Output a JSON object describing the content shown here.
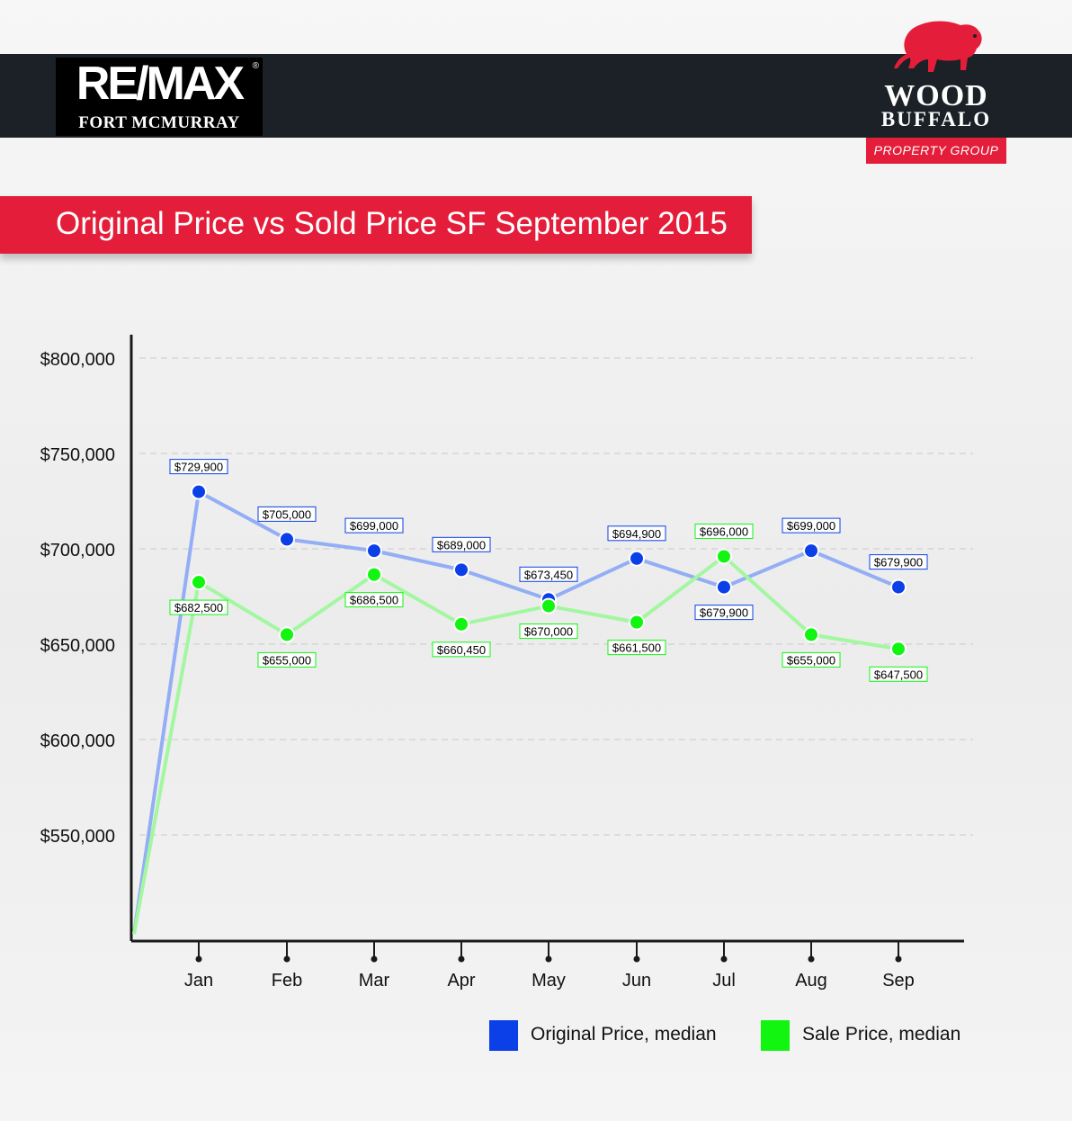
{
  "header": {
    "remax_wordmark": "RE/MAX",
    "remax_registered": "®",
    "remax_location": "FORT MCMURRAY",
    "wb_line1": "WOOD",
    "wb_line2": "BUFFALO",
    "wb_badge": "PROPERTY GROUP"
  },
  "colors": {
    "brand_red": "#e41e3a",
    "header_dark": "#1b2126",
    "original_line": "#93aef5",
    "original_marker": "#0b3fe8",
    "sale_line": "#a3f7a0",
    "sale_marker": "#11f511"
  },
  "chart_data": {
    "type": "line",
    "title": "Original Price vs Sold Price SF September 2015",
    "categories": [
      "Jan",
      "Feb",
      "Mar",
      "Apr",
      "May",
      "Jun",
      "Jul",
      "Aug",
      "Sep"
    ],
    "y_ticks": [
      550000,
      600000,
      650000,
      700000,
      750000,
      800000
    ],
    "y_tick_labels": [
      "$550,000",
      "$600,000",
      "$650,000",
      "$700,000",
      "$750,000",
      "$800,000"
    ],
    "ylim": [
      500000,
      810000
    ],
    "grid": true,
    "series": [
      {
        "name": "Original Price, median",
        "values": [
          729900,
          705000,
          699000,
          689000,
          673450,
          694900,
          679900,
          699000,
          679900
        ],
        "labels": [
          "$729,900",
          "$705,000",
          "$699,000",
          "$689,000",
          "$673,450",
          "$694,900",
          "$679,900",
          "$699,000",
          "$679,900"
        ]
      },
      {
        "name": "Sale Price, median",
        "values": [
          682500,
          655000,
          686500,
          660450,
          670000,
          661500,
          696000,
          655000,
          647500
        ],
        "labels": [
          "$682,500",
          "$655,000",
          "$686,500",
          "$660,450",
          "$670,000",
          "$661,500",
          "$696,000",
          "$655,000",
          "$647,500"
        ]
      }
    ],
    "legend_position": "bottom-right"
  }
}
